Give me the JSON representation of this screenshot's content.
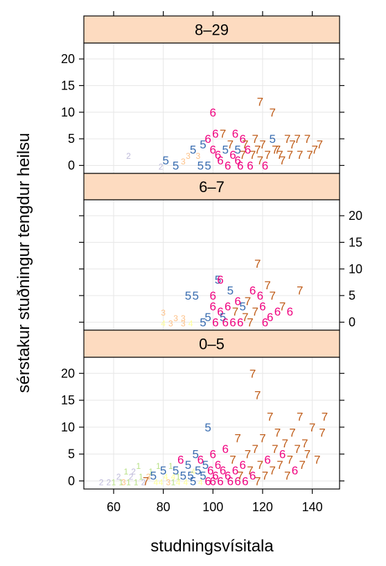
{
  "chart_data": {
    "type": "scatter",
    "layout": "lattice-stacked-panels",
    "xlabel": "studningsvísitala",
    "ylabel": "sérstakur stuðningur tengdur heilsu",
    "xlim": [
      48,
      151
    ],
    "xticks": [
      60,
      80,
      100,
      120,
      140
    ],
    "ylim": [
      -1.5,
      23
    ],
    "yticks": [
      0,
      5,
      10,
      15,
      20
    ],
    "grid": true,
    "strip_color": "#FDDBC0",
    "marker_legend": {
      "1": "#B8E186",
      "2": "#BEBADA",
      "3": "#FDC086",
      "4": "#FFFF99",
      "5": "#386CB0",
      "6": "#F0027F",
      "7": "#BF5B17"
    },
    "panels": [
      {
        "strip": "8–29",
        "points": [
          {
            "x": 66,
            "y": 2,
            "g": "2"
          },
          {
            "x": 79,
            "y": 0,
            "g": "2"
          },
          {
            "x": 81,
            "y": 1,
            "g": "5"
          },
          {
            "x": 85,
            "y": 0,
            "g": "5"
          },
          {
            "x": 88,
            "y": 1,
            "g": "3"
          },
          {
            "x": 90,
            "y": 2,
            "g": "3"
          },
          {
            "x": 92,
            "y": 3,
            "g": "5"
          },
          {
            "x": 94,
            "y": 2,
            "g": "3"
          },
          {
            "x": 95,
            "y": 0,
            "g": "5"
          },
          {
            "x": 96,
            "y": 4,
            "g": "5"
          },
          {
            "x": 98,
            "y": 5,
            "g": "6"
          },
          {
            "x": 98,
            "y": 0,
            "g": "5"
          },
          {
            "x": 100,
            "y": 10,
            "g": "6"
          },
          {
            "x": 100,
            "y": 3,
            "g": "6"
          },
          {
            "x": 101,
            "y": 6,
            "g": "6"
          },
          {
            "x": 102,
            "y": 2,
            "g": "6"
          },
          {
            "x": 103,
            "y": 1,
            "g": "6"
          },
          {
            "x": 104,
            "y": 6,
            "g": "7"
          },
          {
            "x": 105,
            "y": 3,
            "g": "5"
          },
          {
            "x": 106,
            "y": 0,
            "g": "6"
          },
          {
            "x": 107,
            "y": 4,
            "g": "7"
          },
          {
            "x": 108,
            "y": 2,
            "g": "6"
          },
          {
            "x": 109,
            "y": 6,
            "g": "6"
          },
          {
            "x": 110,
            "y": 3,
            "g": "5"
          },
          {
            "x": 110,
            "y": 1,
            "g": "6"
          },
          {
            "x": 111,
            "y": 0,
            "g": "6"
          },
          {
            "x": 112,
            "y": 5,
            "g": "6"
          },
          {
            "x": 112,
            "y": 2,
            "g": "7"
          },
          {
            "x": 113,
            "y": 4,
            "g": "7"
          },
          {
            "x": 114,
            "y": 3,
            "g": "6"
          },
          {
            "x": 115,
            "y": 0,
            "g": "6"
          },
          {
            "x": 116,
            "y": 2,
            "g": "7"
          },
          {
            "x": 117,
            "y": 5,
            "g": "7"
          },
          {
            "x": 118,
            "y": 3,
            "g": "7"
          },
          {
            "x": 119,
            "y": 12,
            "g": "7"
          },
          {
            "x": 119,
            "y": 1,
            "g": "7"
          },
          {
            "x": 120,
            "y": 4,
            "g": "7"
          },
          {
            "x": 121,
            "y": 0,
            "g": "6"
          },
          {
            "x": 122,
            "y": 2,
            "g": "7"
          },
          {
            "x": 124,
            "y": 10,
            "g": "7"
          },
          {
            "x": 124,
            "y": 5,
            "g": "5"
          },
          {
            "x": 125,
            "y": 3,
            "g": "7"
          },
          {
            "x": 126,
            "y": 3,
            "g": "7"
          },
          {
            "x": 127,
            "y": 2,
            "g": "7"
          },
          {
            "x": 128,
            "y": 1,
            "g": "7"
          },
          {
            "x": 130,
            "y": 5,
            "g": "7"
          },
          {
            "x": 131,
            "y": 2,
            "g": "7"
          },
          {
            "x": 132,
            "y": 4,
            "g": "7"
          },
          {
            "x": 134,
            "y": 5,
            "g": "7"
          },
          {
            "x": 135,
            "y": 2,
            "g": "7"
          },
          {
            "x": 138,
            "y": 5,
            "g": "7"
          },
          {
            "x": 139,
            "y": 2,
            "g": "7"
          },
          {
            "x": 141,
            "y": 3,
            "g": "7"
          },
          {
            "x": 143,
            "y": 4,
            "g": "7"
          }
        ]
      },
      {
        "strip": "6–7",
        "points": [
          {
            "x": 80,
            "y": 0,
            "g": "4"
          },
          {
            "x": 80,
            "y": 2,
            "g": "3"
          },
          {
            "x": 83,
            "y": 0,
            "g": "3"
          },
          {
            "x": 85,
            "y": 1,
            "g": "3"
          },
          {
            "x": 88,
            "y": 1,
            "g": "3"
          },
          {
            "x": 88,
            "y": 0,
            "g": "3"
          },
          {
            "x": 90,
            "y": 5,
            "g": "5"
          },
          {
            "x": 91,
            "y": 0,
            "g": "4"
          },
          {
            "x": 93,
            "y": 5,
            "g": "5"
          },
          {
            "x": 96,
            "y": 0,
            "g": "5"
          },
          {
            "x": 98,
            "y": 1,
            "g": "5"
          },
          {
            "x": 100,
            "y": 3,
            "g": "6"
          },
          {
            "x": 100,
            "y": 5,
            "g": "6"
          },
          {
            "x": 101,
            "y": 0,
            "g": "6"
          },
          {
            "x": 102,
            "y": 8,
            "g": "5"
          },
          {
            "x": 103,
            "y": 2,
            "g": "6"
          },
          {
            "x": 103,
            "y": 8,
            "g": "6"
          },
          {
            "x": 104,
            "y": 1,
            "g": "5"
          },
          {
            "x": 105,
            "y": 0,
            "g": "6"
          },
          {
            "x": 106,
            "y": 3,
            "g": "6"
          },
          {
            "x": 107,
            "y": 6,
            "g": "5"
          },
          {
            "x": 108,
            "y": 0,
            "g": "6"
          },
          {
            "x": 109,
            "y": 2,
            "g": "7"
          },
          {
            "x": 110,
            "y": 4,
            "g": "6"
          },
          {
            "x": 111,
            "y": 0,
            "g": "6"
          },
          {
            "x": 112,
            "y": 3,
            "g": "5"
          },
          {
            "x": 113,
            "y": 1,
            "g": "7"
          },
          {
            "x": 114,
            "y": 4,
            "g": "7"
          },
          {
            "x": 115,
            "y": 0,
            "g": "7"
          },
          {
            "x": 116,
            "y": 6,
            "g": "6"
          },
          {
            "x": 117,
            "y": 2,
            "g": "7"
          },
          {
            "x": 118,
            "y": 11,
            "g": "7"
          },
          {
            "x": 119,
            "y": 5,
            "g": "6"
          },
          {
            "x": 120,
            "y": 3,
            "g": "6"
          },
          {
            "x": 121,
            "y": 0,
            "g": "6"
          },
          {
            "x": 122,
            "y": 7,
            "g": "7"
          },
          {
            "x": 123,
            "y": 1,
            "g": "6"
          },
          {
            "x": 124,
            "y": 5,
            "g": "7"
          },
          {
            "x": 126,
            "y": 2,
            "g": "6"
          },
          {
            "x": 128,
            "y": 3,
            "g": "7"
          },
          {
            "x": 131,
            "y": 2,
            "g": "6"
          },
          {
            "x": 135,
            "y": 6,
            "g": "7"
          }
        ]
      },
      {
        "strip": "0–5",
        "points": [
          {
            "x": 55,
            "y": 0,
            "g": "2"
          },
          {
            "x": 58,
            "y": 0,
            "g": "2"
          },
          {
            "x": 60,
            "y": 0,
            "g": "1"
          },
          {
            "x": 62,
            "y": 1,
            "g": "2"
          },
          {
            "x": 63,
            "y": 0,
            "g": "1"
          },
          {
            "x": 64,
            "y": 0,
            "g": "3"
          },
          {
            "x": 65,
            "y": 2,
            "g": "1"
          },
          {
            "x": 66,
            "y": 0,
            "g": "1"
          },
          {
            "x": 67,
            "y": 1,
            "g": "2"
          },
          {
            "x": 68,
            "y": 2,
            "g": "2"
          },
          {
            "x": 69,
            "y": 0,
            "g": "1"
          },
          {
            "x": 70,
            "y": 3,
            "g": "1"
          },
          {
            "x": 71,
            "y": 1,
            "g": "1"
          },
          {
            "x": 72,
            "y": 0,
            "g": "2"
          },
          {
            "x": 73,
            "y": 0,
            "g": "7"
          },
          {
            "x": 74,
            "y": 1,
            "g": "3"
          },
          {
            "x": 75,
            "y": 2,
            "g": "1"
          },
          {
            "x": 76,
            "y": 1,
            "g": "5"
          },
          {
            "x": 77,
            "y": 0,
            "g": "4"
          },
          {
            "x": 78,
            "y": 3,
            "g": "1"
          },
          {
            "x": 79,
            "y": 0,
            "g": "4"
          },
          {
            "x": 80,
            "y": 2,
            "g": "5"
          },
          {
            "x": 81,
            "y": 1,
            "g": "4"
          },
          {
            "x": 82,
            "y": 0,
            "g": "3"
          },
          {
            "x": 83,
            "y": 3,
            "g": "1"
          },
          {
            "x": 84,
            "y": 1,
            "g": "4"
          },
          {
            "x": 85,
            "y": 2,
            "g": "5"
          },
          {
            "x": 86,
            "y": 0,
            "g": "4"
          },
          {
            "x": 87,
            "y": 4,
            "g": "6"
          },
          {
            "x": 88,
            "y": 1,
            "g": "5"
          },
          {
            "x": 89,
            "y": 0,
            "g": "4"
          },
          {
            "x": 90,
            "y": 3,
            "g": "5"
          },
          {
            "x": 91,
            "y": 1,
            "g": "5"
          },
          {
            "x": 92,
            "y": 0,
            "g": "5"
          },
          {
            "x": 93,
            "y": 5,
            "g": "5"
          },
          {
            "x": 94,
            "y": 2,
            "g": "5"
          },
          {
            "x": 95,
            "y": 0,
            "g": "4"
          },
          {
            "x": 95,
            "y": 4,
            "g": "6"
          },
          {
            "x": 96,
            "y": 1,
            "g": "5"
          },
          {
            "x": 97,
            "y": 3,
            "g": "5"
          },
          {
            "x": 98,
            "y": 0,
            "g": "6"
          },
          {
            "x": 98,
            "y": 10,
            "g": "5"
          },
          {
            "x": 99,
            "y": 2,
            "g": "6"
          },
          {
            "x": 100,
            "y": 5,
            "g": "6"
          },
          {
            "x": 100,
            "y": 0,
            "g": "6"
          },
          {
            "x": 101,
            "y": 1,
            "g": "6"
          },
          {
            "x": 102,
            "y": 3,
            "g": "6"
          },
          {
            "x": 103,
            "y": 0,
            "g": "6"
          },
          {
            "x": 104,
            "y": 2,
            "g": "6"
          },
          {
            "x": 105,
            "y": 6,
            "g": "6"
          },
          {
            "x": 106,
            "y": 1,
            "g": "6"
          },
          {
            "x": 107,
            "y": 0,
            "g": "6"
          },
          {
            "x": 108,
            "y": 4,
            "g": "7"
          },
          {
            "x": 109,
            "y": 2,
            "g": "6"
          },
          {
            "x": 110,
            "y": 0,
            "g": "6"
          },
          {
            "x": 110,
            "y": 8,
            "g": "7"
          },
          {
            "x": 111,
            "y": 1,
            "g": "7"
          },
          {
            "x": 112,
            "y": 3,
            "g": "6"
          },
          {
            "x": 113,
            "y": 0,
            "g": "6"
          },
          {
            "x": 114,
            "y": 5,
            "g": "7"
          },
          {
            "x": 115,
            "y": 2,
            "g": "7"
          },
          {
            "x": 116,
            "y": 20,
            "g": "7"
          },
          {
            "x": 116,
            "y": 1,
            "g": "6"
          },
          {
            "x": 117,
            "y": 6,
            "g": "7"
          },
          {
            "x": 118,
            "y": 0,
            "g": "7"
          },
          {
            "x": 118,
            "y": 16,
            "g": "7"
          },
          {
            "x": 119,
            "y": 3,
            "g": "7"
          },
          {
            "x": 120,
            "y": 8,
            "g": "7"
          },
          {
            "x": 121,
            "y": 1,
            "g": "7"
          },
          {
            "x": 122,
            "y": 4,
            "g": "6"
          },
          {
            "x": 123,
            "y": 12,
            "g": "7"
          },
          {
            "x": 124,
            "y": 2,
            "g": "7"
          },
          {
            "x": 125,
            "y": 6,
            "g": "7"
          },
          {
            "x": 126,
            "y": 9,
            "g": "7"
          },
          {
            "x": 127,
            "y": 3,
            "g": "7"
          },
          {
            "x": 128,
            "y": 5,
            "g": "6"
          },
          {
            "x": 129,
            "y": 7,
            "g": "7"
          },
          {
            "x": 130,
            "y": 1,
            "g": "7"
          },
          {
            "x": 131,
            "y": 4,
            "g": "7"
          },
          {
            "x": 132,
            "y": 9,
            "g": "7"
          },
          {
            "x": 133,
            "y": 2,
            "g": "6"
          },
          {
            "x": 134,
            "y": 6,
            "g": "7"
          },
          {
            "x": 135,
            "y": 12,
            "g": "7"
          },
          {
            "x": 136,
            "y": 3,
            "g": "7"
          },
          {
            "x": 137,
            "y": 7,
            "g": "7"
          },
          {
            "x": 138,
            "y": 5,
            "g": "7"
          },
          {
            "x": 140,
            "y": 10,
            "g": "7"
          },
          {
            "x": 142,
            "y": 4,
            "g": "7"
          },
          {
            "x": 144,
            "y": 9,
            "g": "7"
          },
          {
            "x": 145,
            "y": 12,
            "g": "7"
          },
          {
            "x": 84,
            "y": 0,
            "g": "1"
          },
          {
            "x": 86,
            "y": 1,
            "g": "1"
          },
          {
            "x": 92,
            "y": 2,
            "g": "4"
          }
        ]
      }
    ]
  }
}
